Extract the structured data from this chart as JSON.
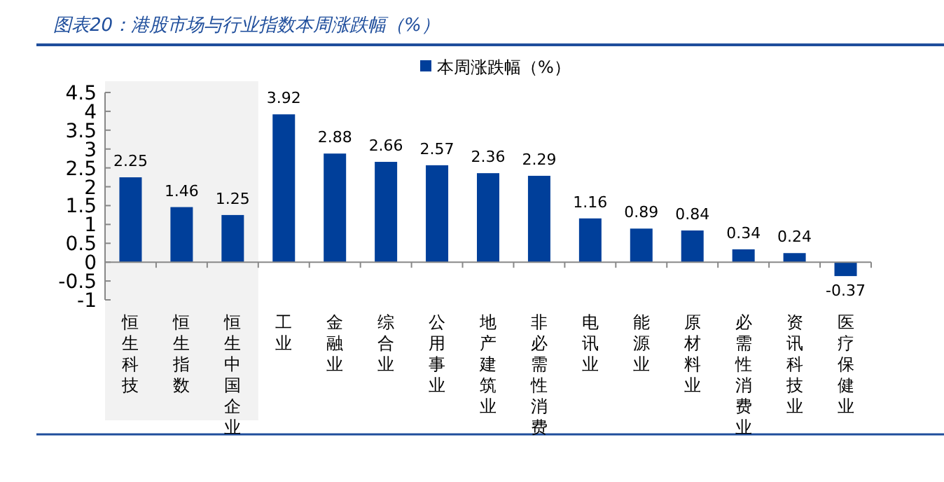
{
  "chart_data": {
    "type": "bar",
    "title": "图表20：港股市场与行业指数本周涨跌幅（%）",
    "categories": [
      "恒生科技",
      "恒生指数",
      "恒生中国企业",
      "工业",
      "金融业",
      "综合业",
      "公用事业",
      "地产建筑业",
      "非必需性消费",
      "电讯业",
      "能源业",
      "原材料业",
      "必需性消费业",
      "资讯科技业",
      "医疗保健业"
    ],
    "series": [
      {
        "name": "本周涨跌幅（%）",
        "color": "#003f9a",
        "values": [
          2.25,
          1.46,
          1.25,
          3.92,
          2.88,
          2.66,
          2.57,
          2.36,
          2.29,
          1.16,
          0.89,
          0.84,
          0.34,
          0.24,
          -0.37
        ]
      }
    ],
    "ylim": [
      -1,
      4.5
    ],
    "yticks": [
      -1,
      -0.5,
      0,
      0.5,
      1,
      1.5,
      2,
      2.5,
      3,
      3.5,
      4,
      4.5
    ],
    "bands": [
      {
        "axis": "x",
        "from": "恒生科技",
        "to": "恒生中国企业",
        "color": "#f2f2f2"
      }
    ],
    "data_labels": true,
    "legend": "top"
  }
}
